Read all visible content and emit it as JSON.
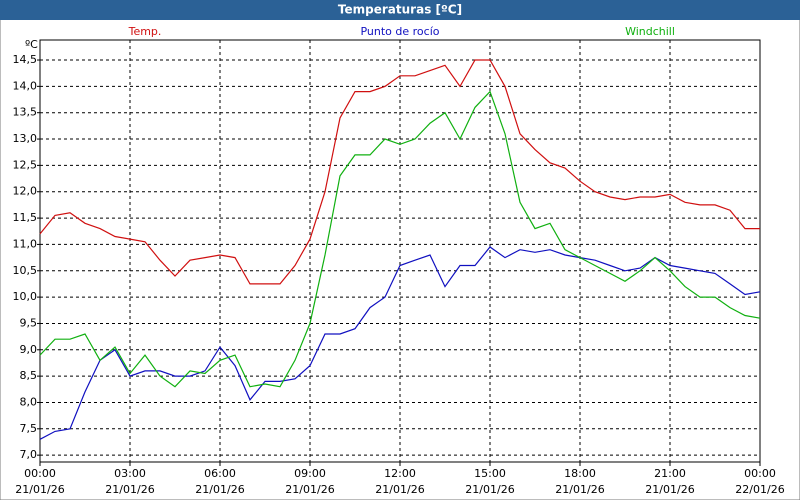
{
  "chart_data": {
    "type": "line",
    "title": "Temperaturas [ºC]",
    "y_unit": "ºC",
    "x": [
      0,
      0.5,
      1,
      1.5,
      2,
      2.5,
      3,
      3.5,
      4,
      4.5,
      5,
      5.5,
      6,
      6.5,
      7,
      7.5,
      8,
      8.5,
      9,
      9.5,
      10,
      10.5,
      11,
      11.5,
      12,
      12.5,
      13,
      13.5,
      14,
      14.5,
      15,
      15.5,
      16,
      16.5,
      17,
      17.5,
      18,
      18.5,
      19,
      19.5,
      20,
      20.5,
      21,
      21.5,
      22,
      22.5,
      23,
      23.5,
      24
    ],
    "series": [
      {
        "name": "Temp.",
        "color": "#d01010",
        "values": [
          11.2,
          11.55,
          11.6,
          11.4,
          11.3,
          11.15,
          11.1,
          11.05,
          10.7,
          10.4,
          10.7,
          10.75,
          10.8,
          10.75,
          10.25,
          10.25,
          10.25,
          10.6,
          11.1,
          12.0,
          13.4,
          13.9,
          13.9,
          14.0,
          14.2,
          14.2,
          14.3,
          14.4,
          14.0,
          14.5,
          14.5,
          14.0,
          13.1,
          12.8,
          12.55,
          12.45,
          12.2,
          12.0,
          11.9,
          11.85,
          11.9,
          11.9,
          11.95,
          11.8,
          11.75,
          11.75,
          11.65,
          11.3,
          11.3
        ]
      },
      {
        "name": "Punto de rocío",
        "color": "#1010c0",
        "values": [
          7.3,
          7.45,
          7.5,
          8.2,
          8.8,
          9.0,
          8.5,
          8.6,
          8.6,
          8.5,
          8.5,
          8.6,
          9.05,
          8.7,
          8.05,
          8.4,
          8.4,
          8.45,
          8.7,
          9.3,
          9.3,
          9.4,
          9.8,
          10.0,
          10.6,
          10.7,
          10.8,
          10.2,
          10.6,
          10.6,
          10.95,
          10.75,
          10.9,
          10.85,
          10.9,
          10.8,
          10.75,
          10.7,
          10.6,
          10.5,
          10.55,
          10.75,
          10.6,
          10.55,
          10.5,
          10.45,
          10.25,
          10.05,
          10.1
        ]
      },
      {
        "name": "Windchill",
        "color": "#10b010",
        "values": [
          8.9,
          9.2,
          9.2,
          9.3,
          8.8,
          9.05,
          8.55,
          8.9,
          8.5,
          8.3,
          8.6,
          8.55,
          8.8,
          8.9,
          8.3,
          8.35,
          8.3,
          8.8,
          9.5,
          10.8,
          12.3,
          12.7,
          12.7,
          13.0,
          12.9,
          13.0,
          13.3,
          13.5,
          13.0,
          13.6,
          13.9,
          13.1,
          11.8,
          11.3,
          11.4,
          10.9,
          10.75,
          10.6,
          10.45,
          10.3,
          10.5,
          10.75,
          10.5,
          10.2,
          10.0,
          10.0,
          9.8,
          9.65,
          9.6
        ]
      }
    ],
    "xlim": [
      0,
      24
    ],
    "xticks": [
      {
        "value": 0,
        "label": "00:00"
      },
      {
        "value": 3,
        "label": "03:00"
      },
      {
        "value": 6,
        "label": "06:00"
      },
      {
        "value": 9,
        "label": "09:00"
      },
      {
        "value": 12,
        "label": "12:00"
      },
      {
        "value": 15,
        "label": "15:00"
      },
      {
        "value": 18,
        "label": "18:00"
      },
      {
        "value": 21,
        "label": "21:00"
      },
      {
        "value": 24,
        "label": "00:00"
      }
    ],
    "xtick_dates": [
      "21/01/26",
      "21/01/26",
      "21/01/26",
      "21/01/26",
      "21/01/26",
      "21/01/26",
      "21/01/26",
      "21/01/26",
      "22/01/26"
    ],
    "ylim": [
      6.87,
      14.88
    ],
    "yticks": [
      {
        "value": 7,
        "label": "7,0"
      },
      {
        "value": 7.5,
        "label": "7,5"
      },
      {
        "value": 8,
        "label": "8,0"
      },
      {
        "value": 8.5,
        "label": "8,5"
      },
      {
        "value": 9,
        "label": "9,0"
      },
      {
        "value": 9.5,
        "label": "9,5"
      },
      {
        "value": 10,
        "label": "10,0"
      },
      {
        "value": 10.5,
        "label": "10,5"
      },
      {
        "value": 11,
        "label": "11,0"
      },
      {
        "value": 11.5,
        "label": "11,5"
      },
      {
        "value": 12,
        "label": "12,0"
      },
      {
        "value": 12.5,
        "label": "12,5"
      },
      {
        "value": 13,
        "label": "13,0"
      },
      {
        "value": 13.5,
        "label": "13,5"
      },
      {
        "value": 14,
        "label": "14,0"
      },
      {
        "value": 14.5,
        "label": "14,5"
      }
    ],
    "grid": true
  }
}
